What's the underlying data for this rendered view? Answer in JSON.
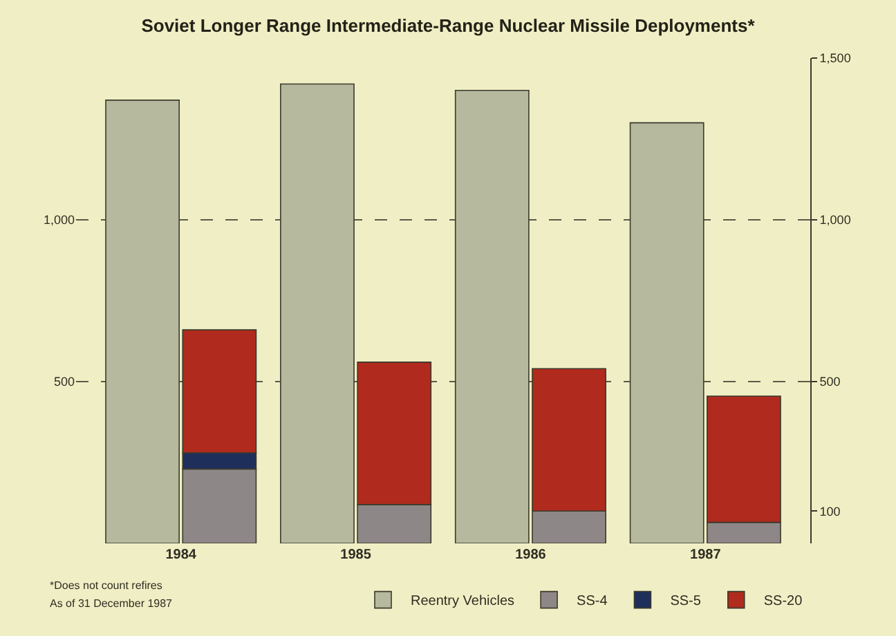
{
  "chart_data": {
    "type": "bar",
    "title": "Soviet Longer Range Intermediate-Range Nuclear Missile Deployments*",
    "categories": [
      "1984",
      "1985",
      "1986",
      "1987"
    ],
    "series": [
      {
        "name": "Reentry Vehicles",
        "color": "#b6b99d",
        "values": [
          1370,
          1420,
          1400,
          1300
        ],
        "axis": "y2"
      },
      {
        "name": "SS-4",
        "color": "#8e8787",
        "values": [
          230,
          120,
          100,
          65
        ]
      },
      {
        "name": "SS-5",
        "color": "#1f2f5c",
        "values": [
          50,
          null,
          null,
          null
        ]
      },
      {
        "name": "SS-20",
        "color": "#b02a1e",
        "values": [
          380,
          440,
          440,
          390
        ]
      }
    ],
    "stacked": true,
    "ylim": [
      0,
      1500
    ],
    "yticks": [
      500,
      {
        "value": 1000,
        "label": "1,000"
      }
    ],
    "y2lim": [
      0,
      1500
    ],
    "y2ticks": [
      100,
      500,
      {
        "value": 1000,
        "label": "1,000"
      },
      {
        "value": 1500,
        "label": "1,500"
      }
    ],
    "grid": "y",
    "legend": "bottom",
    "annotations": [
      "*Does not count refires",
      "As of 31 December 1987"
    ]
  }
}
